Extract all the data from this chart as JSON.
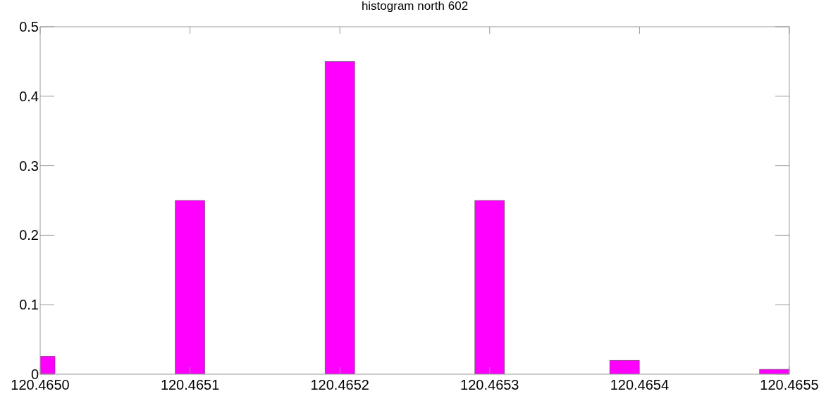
{
  "chart_data": {
    "type": "bar",
    "title": "histogram north 602",
    "x": [
      120.465,
      120.4651,
      120.4652,
      120.4653,
      120.46539,
      120.46549
    ],
    "values": [
      0.026,
      0.25,
      0.45,
      0.25,
      0.02,
      0.007
    ],
    "color": "#ff00ff",
    "xlim": [
      120.465,
      120.4655
    ],
    "xticks": [
      {
        "value": 120.465,
        "label": "120.4650"
      },
      120.4651,
      120.4652,
      120.4653,
      120.4654,
      120.4655
    ],
    "ylim": [
      0,
      0.5
    ],
    "yticks": [
      0,
      0.1,
      0.2,
      0.3,
      0.4,
      0.5
    ],
    "grid": false
  }
}
